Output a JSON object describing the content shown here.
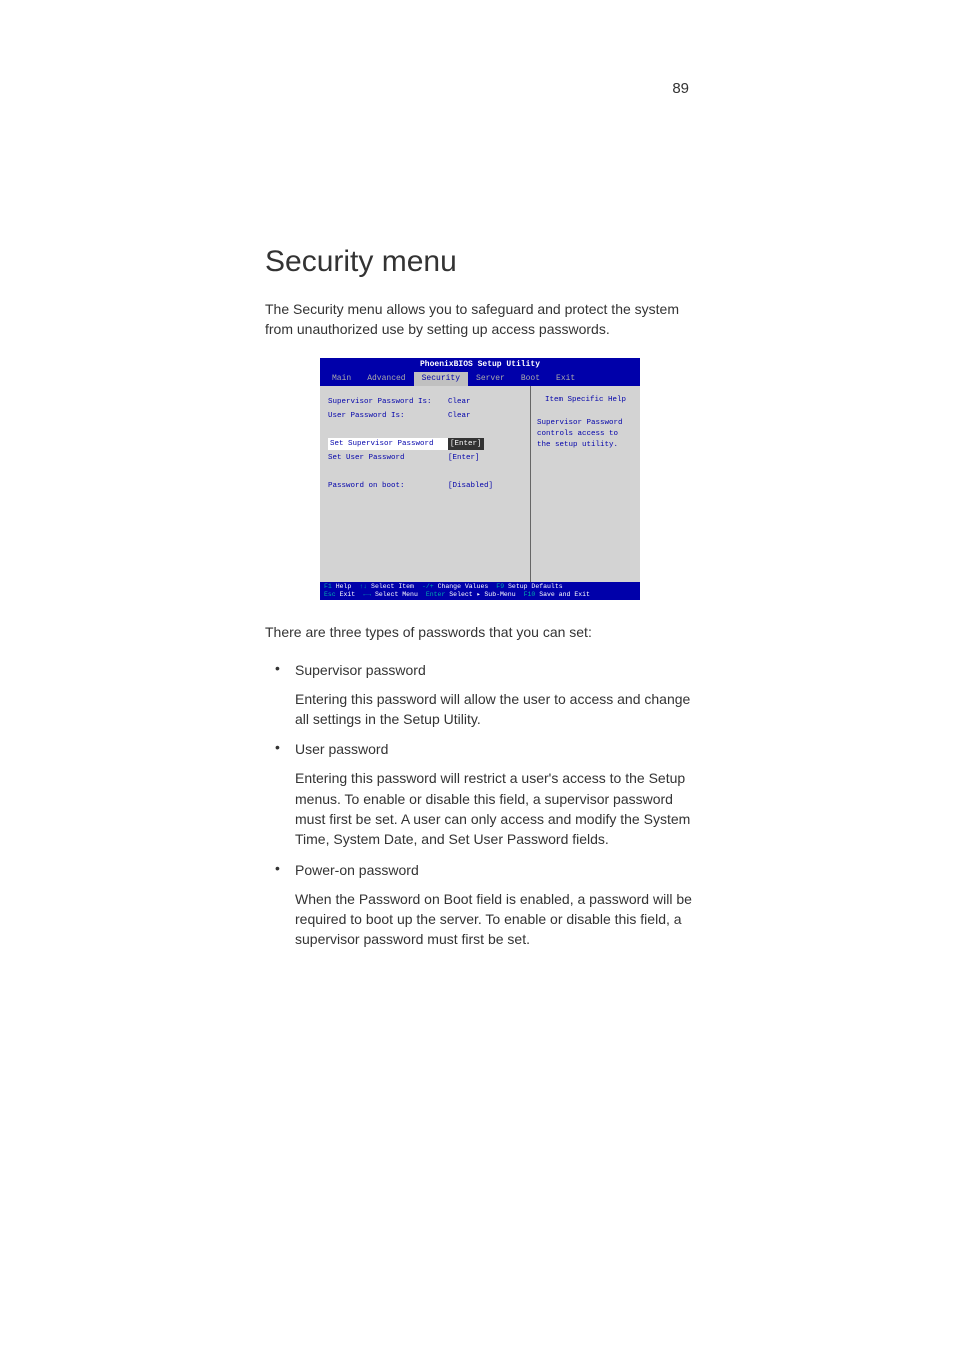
{
  "page": {
    "number": "89",
    "heading": "Security menu",
    "intro": "The Security menu allows you to safeguard and protect the system from unauthorized use by setting up access passwords.",
    "after_screenshot": "There are three types of passwords that you can set:"
  },
  "bullets": [
    {
      "label": "Supervisor password",
      "body": "Entering this password will allow the user to access and change all settings in the Setup Utility."
    },
    {
      "label": "User password",
      "body": "Entering this password will restrict a user's access to the Setup menus.  To enable or disable this field, a supervisor password must first be set.  A user can only access and modify the System Time, System Date, and Set User Password fields."
    },
    {
      "label": "Power-on password",
      "body": "When the Password on Boot field is enabled, a password will be required to boot up the server.  To enable or disable this field, a supervisor password must first be set."
    }
  ],
  "bios": {
    "title": "PhoenixBIOS Setup Utility",
    "tabs": [
      "Main",
      "Advanced",
      "Security",
      "Server",
      "Boot",
      "Exit"
    ],
    "active_tab": "Security",
    "rows": [
      {
        "label": "Supervisor Password Is:",
        "value": "Clear",
        "hl_label": false,
        "hl_value": false
      },
      {
        "label": "User Password Is:",
        "value": "Clear",
        "hl_label": false,
        "hl_value": false
      },
      {
        "label": "",
        "value": "",
        "hl_label": false,
        "hl_value": false
      },
      {
        "label": "Set Supervisor Password",
        "value": "[Enter]",
        "hl_label": true,
        "hl_value": true
      },
      {
        "label": "Set User Password",
        "value": "[Enter]",
        "hl_label": false,
        "hl_value": false
      },
      {
        "label": "",
        "value": "",
        "hl_label": false,
        "hl_value": false
      },
      {
        "label": "Password on boot:",
        "value": "[Disabled]",
        "hl_label": false,
        "hl_value": false
      }
    ],
    "help": {
      "title": "Item Specific Help",
      "text": "Supervisor Password controls access to the setup utility."
    },
    "footer": {
      "line1": [
        {
          "key": "F1",
          "label": "Help"
        },
        {
          "key": "↑↓",
          "label": "Select Item"
        },
        {
          "key": "-/+",
          "label": "Change Values"
        },
        {
          "key": "F9",
          "label": "Setup Defaults"
        }
      ],
      "line2": [
        {
          "key": "Esc",
          "label": "Exit"
        },
        {
          "key": "←→",
          "label": "Select Menu"
        },
        {
          "key": "Enter",
          "label": "Select ▸ Sub-Menu"
        },
        {
          "key": "F10",
          "label": "Save and Exit"
        }
      ]
    }
  },
  "colors": {
    "bios_bg": "#0000aa",
    "bios_panel": "#d3d3d3",
    "bios_text": "#0000aa",
    "bios_menu_text": "#aaaaaa",
    "bios_highlight_bg": "#ffffff",
    "page_text": "#333333"
  }
}
